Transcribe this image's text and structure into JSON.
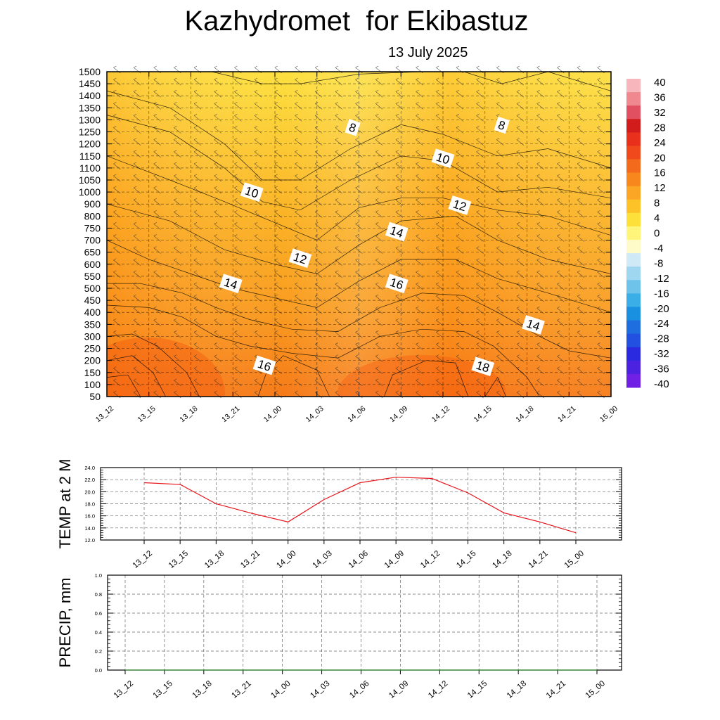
{
  "header": {
    "title": "Kazhydromet  for Ekibastuz",
    "date": "13 July 2025"
  },
  "colors": {
    "background": "#ffffff",
    "axis": "#000000",
    "temp_line": "#e8141c",
    "precip_line": "#2e8b2e",
    "grid": "#000000"
  },
  "chart_data": [
    {
      "type": "heatmap",
      "name": "cross-section",
      "x_ticks": [
        "13_12",
        "13_15",
        "13_18",
        "13_21",
        "14_00",
        "14_03",
        "14_06",
        "14_09",
        "14_12",
        "14_15",
        "14_18",
        "14_21",
        "15_00"
      ],
      "y_ticks": [
        "50",
        "100",
        "150",
        "200",
        "250",
        "300",
        "350",
        "400",
        "450",
        "500",
        "550",
        "600",
        "650",
        "700",
        "750",
        "800",
        "900",
        "1000",
        "1050",
        "1100",
        "1150",
        "1200",
        "1250",
        "1300",
        "1350",
        "1400",
        "1450",
        "1500"
      ],
      "contour_labels": [
        {
          "text": "8",
          "x": 5.85,
          "y": 1268
        },
        {
          "text": "8",
          "x": 9.4,
          "y": 1278
        },
        {
          "text": "10",
          "x": 3.45,
          "y": 1000
        },
        {
          "text": "10",
          "x": 8.0,
          "y": 1140
        },
        {
          "text": "12",
          "x": 4.6,
          "y": 625
        },
        {
          "text": "12",
          "x": 8.4,
          "y": 890
        },
        {
          "text": "14",
          "x": 2.95,
          "y": 520
        },
        {
          "text": "14",
          "x": 6.9,
          "y": 735
        },
        {
          "text": "14",
          "x": 10.15,
          "y": 348
        },
        {
          "text": "16",
          "x": 3.75,
          "y": 180
        },
        {
          "text": "16",
          "x": 6.9,
          "y": 520
        },
        {
          "text": "18",
          "x": 8.95,
          "y": 175
        }
      ],
      "colorbar": {
        "labels": [
          "40",
          "36",
          "32",
          "28",
          "24",
          "20",
          "16",
          "12",
          "8",
          "4",
          "0",
          "-4",
          "-8",
          "-12",
          "-16",
          "-20",
          "-24",
          "-28",
          "-32",
          "-36",
          "-40"
        ],
        "colors": [
          "#f7b5bc",
          "#f08890",
          "#e05060",
          "#d21c1c",
          "#e8301c",
          "#f04a1c",
          "#f46a1c",
          "#f8881e",
          "#fba624",
          "#fdc228",
          "#fee03a",
          "#fef57a",
          "#fefbc8",
          "#cfe9f6",
          "#9fd6f0",
          "#6ec3ea",
          "#3aaee6",
          "#1a90e0",
          "#1e6ee0",
          "#2250e0",
          "#2a2ae0",
          "#4a22e0",
          "#7020e4"
        ]
      }
    },
    {
      "type": "line",
      "name": "temperature",
      "ylabel": "TEMP at 2 M",
      "x": [
        "13_12",
        "13_15",
        "13_18",
        "13_21",
        "14_00",
        "14_03",
        "14_06",
        "14_09",
        "14_12",
        "14_15",
        "14_18",
        "14_21",
        "15_00"
      ],
      "values": [
        21.5,
        21.2,
        18.0,
        16.4,
        15.0,
        18.7,
        21.5,
        22.4,
        22.2,
        19.8,
        16.5,
        15.0,
        13.2
      ],
      "ylim": [
        12.0,
        24.0
      ],
      "y_ticks": [
        "12.0",
        "14.0",
        "16.0",
        "18.0",
        "20.0",
        "22.0",
        "24.0"
      ]
    },
    {
      "type": "line",
      "name": "precipitation",
      "ylabel": "PRECIP, mm",
      "x": [
        "13_12",
        "13_15",
        "13_18",
        "13_21",
        "14_00",
        "14_03",
        "14_06",
        "14_09",
        "14_12",
        "14_15",
        "14_18",
        "14_21",
        "15_00"
      ],
      "values": [
        0,
        0,
        0,
        0,
        0,
        0,
        0,
        0,
        0,
        0,
        0,
        0,
        0
      ],
      "ylim": [
        0.0,
        1.0
      ],
      "y_ticks": [
        "0.0",
        "0.2",
        "0.4",
        "0.6",
        "0.8",
        "1.0"
      ]
    }
  ]
}
